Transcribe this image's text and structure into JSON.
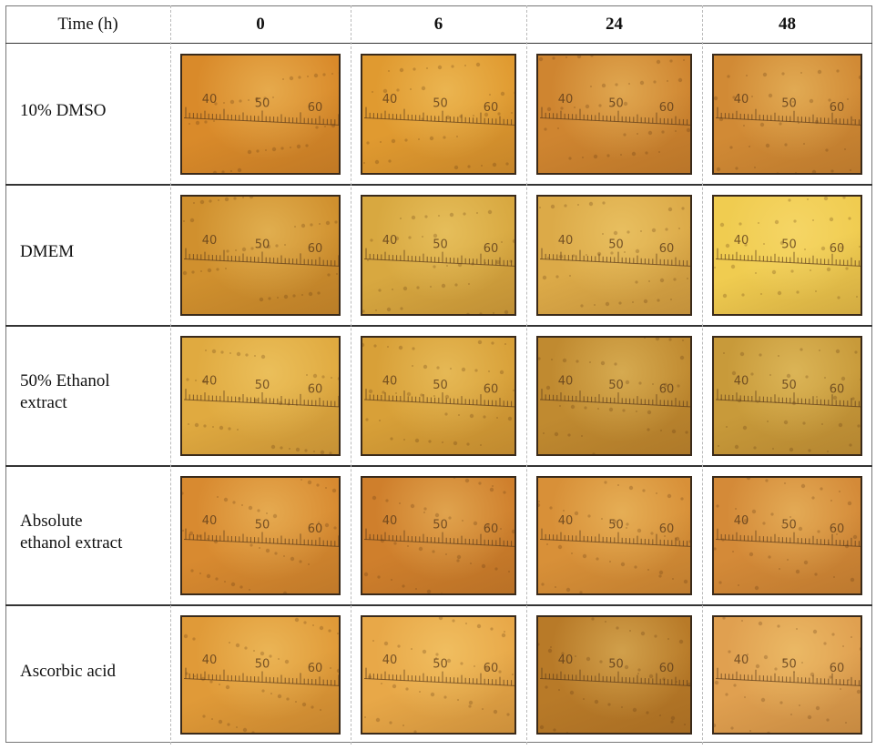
{
  "table": {
    "header": [
      "Time (h)",
      "0",
      "6",
      "24",
      "48"
    ],
    "rows": [
      {
        "label": [
          "10% DMSO"
        ]
      },
      {
        "label": [
          "DMEM"
        ]
      },
      {
        "label": [
          "50% Ethanol",
          "extract"
        ]
      },
      {
        "label": [
          "Absolute",
          "ethanol extract"
        ]
      },
      {
        "label": [
          "Ascorbic acid"
        ]
      }
    ]
  },
  "scale_labels": [
    "40",
    "50",
    "60"
  ]
}
